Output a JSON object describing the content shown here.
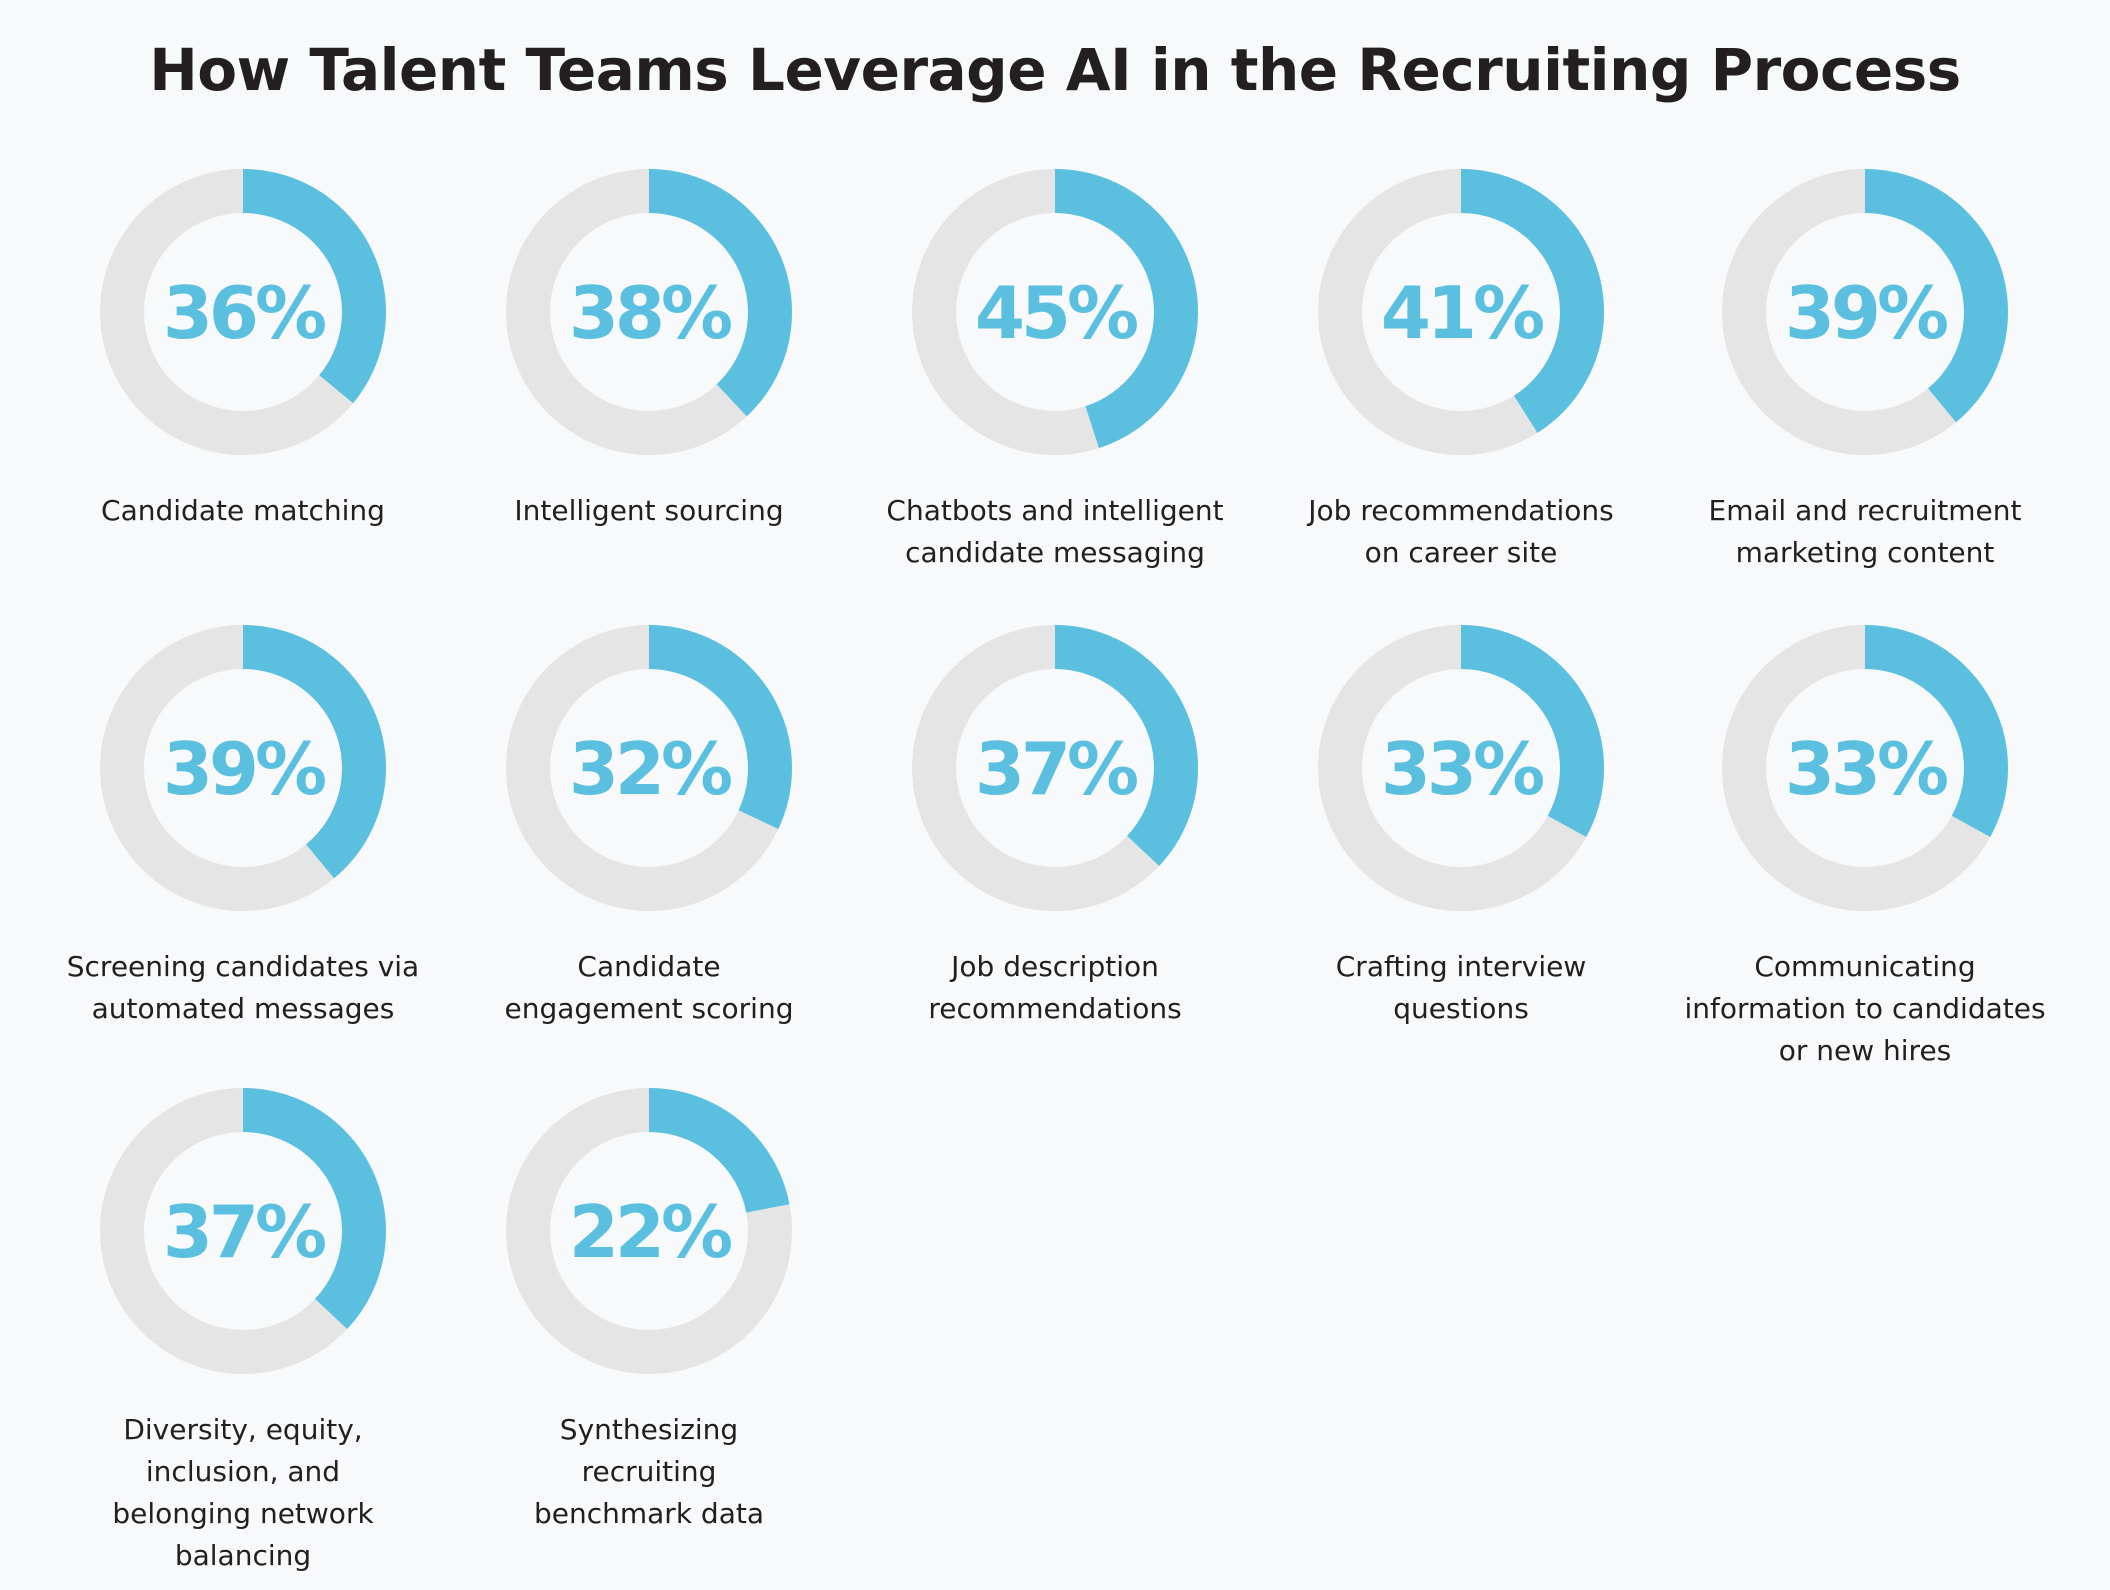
{
  "chart_data": {
    "type": "pie",
    "subtype": "donut-grid",
    "title": "How Talent Teams Leverage AI in the Recruiting Process",
    "colors": {
      "filled": "#5bc0e0",
      "remaining": "#e5e5e5",
      "background": "#f7f9fb",
      "text": "#231f20",
      "value_text": "#5bc0e0"
    },
    "unit": "%",
    "items": [
      {
        "label": "Candidate matching",
        "label_lines": [
          "Candidate matching"
        ],
        "value": 36
      },
      {
        "label": "Intelligent sourcing",
        "label_lines": [
          "Intelligent sourcing"
        ],
        "value": 38
      },
      {
        "label": "Chatbots and intelligent candidate messaging",
        "label_lines": [
          "Chatbots and intelligent",
          "candidate messaging"
        ],
        "value": 45
      },
      {
        "label": "Job recommendations on career site",
        "label_lines": [
          "Job recommendations",
          "on career site"
        ],
        "value": 41
      },
      {
        "label": "Email and recruitment marketing content",
        "label_lines": [
          "Email and recruitment",
          "marketing content"
        ],
        "value": 39
      },
      {
        "label": "Screening candidates via automated messages",
        "label_lines": [
          "Screening candidates via",
          "automated messages"
        ],
        "value": 39
      },
      {
        "label": "Candidate engagement scoring",
        "label_lines": [
          "Candidate",
          "engagement scoring"
        ],
        "value": 32
      },
      {
        "label": "Job description recommendations",
        "label_lines": [
          "Job description",
          "recommendations"
        ],
        "value": 37
      },
      {
        "label": "Crafting interview questions",
        "label_lines": [
          "Crafting interview",
          "questions"
        ],
        "value": 33
      },
      {
        "label": "Communicating information to candidates or new hires",
        "label_lines": [
          "Communicating",
          "information to candidates",
          "or new hires"
        ],
        "value": 33
      },
      {
        "label": "Diversity, equity, inclusion, and belonging network balancing",
        "label_lines": [
          "Diversity, equity,",
          "inclusion, and",
          "belonging network",
          "balancing"
        ],
        "value": 37
      },
      {
        "label": "Synthesizing recruiting benchmark data",
        "label_lines": [
          "Synthesizing",
          "recruiting",
          "benchmark data"
        ],
        "value": 22
      }
    ]
  }
}
